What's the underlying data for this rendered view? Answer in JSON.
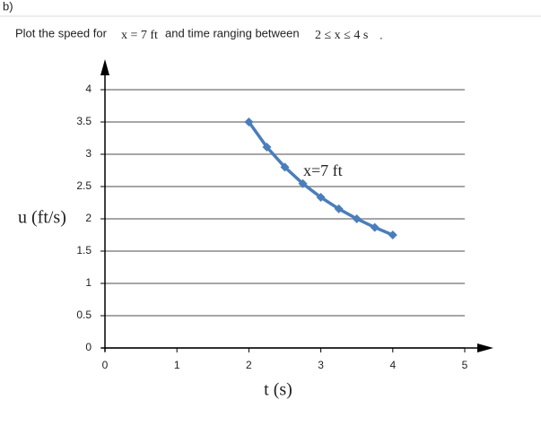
{
  "header": {
    "label": "b)",
    "prompt": "Plot the speed for",
    "condition": "x = 7 ft",
    "connector": "and time ranging between",
    "range": "2 ≤ x ≤ 4 s",
    "end": "."
  },
  "chart_data": {
    "type": "line",
    "ylabel": "u (ft/s)",
    "xlabel": "t (s)",
    "annotation": "x=7 ft",
    "x": [
      2,
      2.25,
      2.5,
      2.75,
      3,
      3.25,
      3.5,
      3.75,
      4
    ],
    "values": [
      3.5,
      3.111,
      2.8,
      2.545,
      2.333,
      2.154,
      2,
      1.867,
      1.75
    ],
    "color": "#4a7ebb",
    "xlim": [
      0,
      5
    ],
    "xticks": [
      0,
      1,
      2,
      3,
      4,
      5
    ],
    "ylim": [
      0,
      4
    ],
    "yticks": [
      0,
      0.5,
      1,
      1.5,
      2,
      2.5,
      3,
      3.5,
      4
    ],
    "grid": true
  }
}
